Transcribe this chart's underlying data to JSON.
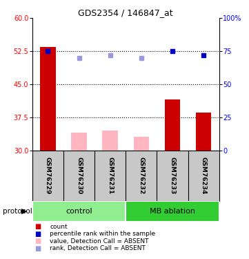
{
  "title": "GDS2354 / 146847_at",
  "samples": [
    "GSM76229",
    "GSM76230",
    "GSM76231",
    "GSM76232",
    "GSM76233",
    "GSM76234"
  ],
  "group_colors": [
    "#90EE90",
    "#32CD32"
  ],
  "bar_values": [
    53.5,
    34.0,
    34.5,
    33.0,
    41.5,
    38.5
  ],
  "bar_colors": [
    "#CC0000",
    "#FFB6C1",
    "#FFB6C1",
    "#FFB6C1",
    "#CC0000",
    "#CC0000"
  ],
  "rank_values": [
    52.5,
    51.0,
    51.5,
    51.0,
    52.5,
    51.5
  ],
  "rank_colors": [
    "#0000CC",
    "#9999DD",
    "#9999DD",
    "#9999DD",
    "#0000CC",
    "#0000BB"
  ],
  "ymin": 30,
  "ymax": 60,
  "yticks_left": [
    30,
    37.5,
    45,
    52.5,
    60
  ],
  "yticks_right": [
    0,
    25,
    50,
    75,
    100
  ],
  "dotted_lines": [
    37.5,
    45,
    52.5
  ],
  "bar_bottom": 30,
  "background_color": "#ffffff",
  "sample_area_color": "#C8C8C8",
  "legend_items": [
    {
      "label": "count",
      "color": "#CC0000"
    },
    {
      "label": "percentile rank within the sample",
      "color": "#0000CC"
    },
    {
      "label": "value, Detection Call = ABSENT",
      "color": "#FFB6C1"
    },
    {
      "label": "rank, Detection Call = ABSENT",
      "color": "#9999DD"
    }
  ]
}
